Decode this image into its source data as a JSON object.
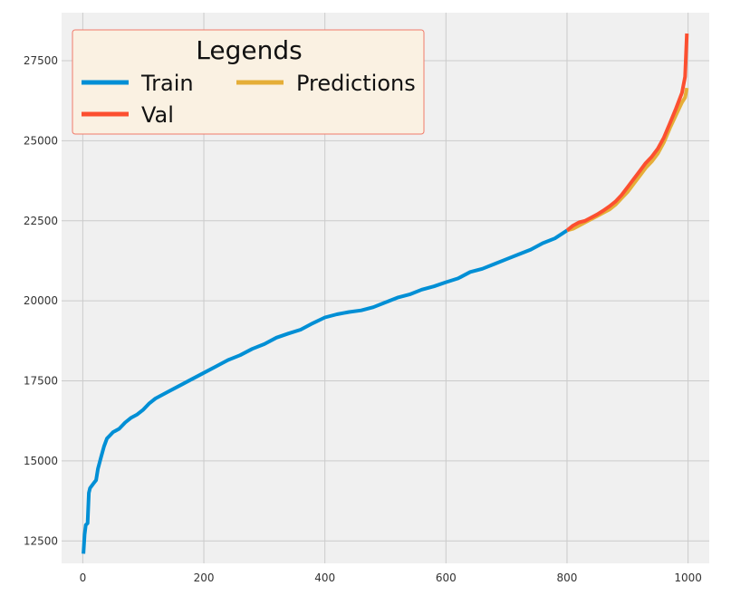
{
  "chart_data": {
    "type": "line",
    "title": "",
    "xlabel": "",
    "ylabel": "",
    "xlim": [
      -35,
      1035
    ],
    "ylim": [
      11800,
      29000
    ],
    "x_ticks": [
      0,
      200,
      400,
      600,
      800,
      1000
    ],
    "x_tick_labels": [
      "0",
      "200",
      "400",
      "600",
      "800",
      "1000"
    ],
    "y_ticks": [
      12500,
      15000,
      17500,
      20000,
      22500,
      25000,
      27500
    ],
    "y_tick_labels": [
      "12500",
      "15000",
      "17500",
      "20000",
      "22500",
      "25000",
      "27500"
    ],
    "grid": true,
    "legend": {
      "title": "Legends",
      "position": "top-left",
      "columns": 2
    },
    "series": [
      {
        "name": "Train",
        "color": "#008fd5",
        "points": [
          [
            1,
            12100
          ],
          [
            3,
            12700
          ],
          [
            5,
            13000
          ],
          [
            8,
            13050
          ],
          [
            10,
            14000
          ],
          [
            12,
            14150
          ],
          [
            18,
            14300
          ],
          [
            22,
            14400
          ],
          [
            25,
            14750
          ],
          [
            30,
            15100
          ],
          [
            35,
            15450
          ],
          [
            40,
            15700
          ],
          [
            45,
            15800
          ],
          [
            50,
            15900
          ],
          [
            60,
            16000
          ],
          [
            70,
            16200
          ],
          [
            80,
            16350
          ],
          [
            90,
            16450
          ],
          [
            100,
            16600
          ],
          [
            110,
            16800
          ],
          [
            120,
            16950
          ],
          [
            140,
            17150
          ],
          [
            160,
            17350
          ],
          [
            180,
            17550
          ],
          [
            200,
            17750
          ],
          [
            220,
            17950
          ],
          [
            240,
            18150
          ],
          [
            260,
            18300
          ],
          [
            280,
            18500
          ],
          [
            300,
            18650
          ],
          [
            320,
            18850
          ],
          [
            340,
            18980
          ],
          [
            360,
            19100
          ],
          [
            380,
            19300
          ],
          [
            400,
            19480
          ],
          [
            420,
            19580
          ],
          [
            440,
            19650
          ],
          [
            460,
            19700
          ],
          [
            480,
            19800
          ],
          [
            500,
            19950
          ],
          [
            520,
            20100
          ],
          [
            540,
            20200
          ],
          [
            560,
            20350
          ],
          [
            580,
            20450
          ],
          [
            600,
            20580
          ],
          [
            620,
            20700
          ],
          [
            640,
            20900
          ],
          [
            660,
            21000
          ],
          [
            680,
            21150
          ],
          [
            700,
            21300
          ],
          [
            720,
            21450
          ],
          [
            740,
            21600
          ],
          [
            760,
            21800
          ],
          [
            780,
            21950
          ],
          [
            800,
            22200
          ]
        ]
      },
      {
        "name": "Val",
        "color": "#fc4f30",
        "points": [
          [
            800,
            22200
          ],
          [
            810,
            22350
          ],
          [
            820,
            22450
          ],
          [
            830,
            22500
          ],
          [
            840,
            22600
          ],
          [
            850,
            22700
          ],
          [
            860,
            22820
          ],
          [
            870,
            22950
          ],
          [
            880,
            23100
          ],
          [
            890,
            23300
          ],
          [
            900,
            23550
          ],
          [
            910,
            23800
          ],
          [
            920,
            24050
          ],
          [
            930,
            24300
          ],
          [
            940,
            24500
          ],
          [
            950,
            24750
          ],
          [
            960,
            25100
          ],
          [
            970,
            25550
          ],
          [
            980,
            26000
          ],
          [
            990,
            26500
          ],
          [
            995,
            27000
          ],
          [
            998,
            28350
          ]
        ]
      },
      {
        "name": "Predictions",
        "color": "#e5ae38",
        "points": [
          [
            800,
            22200
          ],
          [
            810,
            22250
          ],
          [
            820,
            22350
          ],
          [
            830,
            22450
          ],
          [
            840,
            22550
          ],
          [
            850,
            22650
          ],
          [
            860,
            22750
          ],
          [
            870,
            22850
          ],
          [
            880,
            23000
          ],
          [
            890,
            23200
          ],
          [
            900,
            23400
          ],
          [
            910,
            23650
          ],
          [
            920,
            23900
          ],
          [
            930,
            24150
          ],
          [
            940,
            24350
          ],
          [
            950,
            24600
          ],
          [
            960,
            24950
          ],
          [
            970,
            25400
          ],
          [
            980,
            25800
          ],
          [
            990,
            26200
          ],
          [
            995,
            26350
          ],
          [
            998,
            26650
          ]
        ]
      }
    ]
  }
}
